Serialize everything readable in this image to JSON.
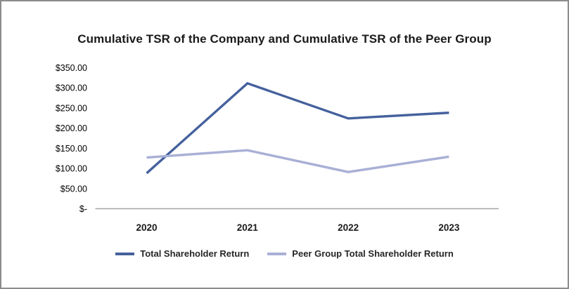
{
  "window": {
    "background_color": "#ffffff",
    "border_color": "#8c8c8c"
  },
  "chart_data": {
    "type": "line",
    "title": "Cumulative TSR of the Company and Cumulative TSR of the Peer Group",
    "categories": [
      "2020",
      "2021",
      "2022",
      "2023"
    ],
    "series": [
      {
        "name": "Total Shareholder Return",
        "color": "#45619d",
        "values": [
          88,
          311,
          224,
          238
        ]
      },
      {
        "name": "Peer Group Total Shareholder Return",
        "color": "#a9b0d6",
        "values": [
          127,
          145,
          91,
          129
        ]
      }
    ],
    "y_axis": {
      "tick_labels": [
        "$350.00",
        "$300.00",
        "$250.00",
        "$200.00",
        "$150.00",
        "$100.00",
        "$50.00",
        "$-"
      ],
      "tick_values": [
        350,
        300,
        250,
        200,
        150,
        100,
        50,
        0
      ],
      "ylim": [
        0,
        350
      ]
    },
    "x_axis_line_color": "#a6a6a6",
    "grid": "off",
    "legend_position": "bottom"
  }
}
